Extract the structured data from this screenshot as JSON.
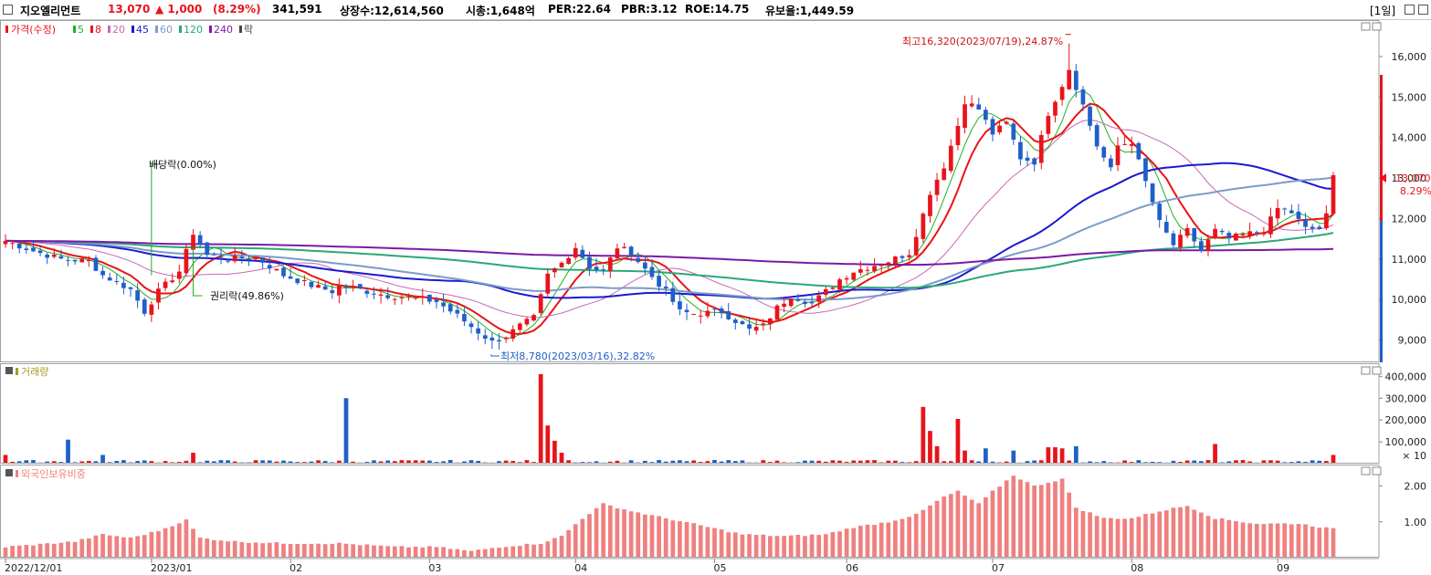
{
  "header": {
    "name": "지오엘리먼트",
    "price": "13,070",
    "change": "▲ 1,000",
    "change_pct": "(8.29%)",
    "volume": "341,591",
    "shares": "상장수:12,614,560",
    "mcap": "시총:1,648억",
    "per": "PER:22.64",
    "pbr": "PBR:3.12",
    "roe": "ROE:14.75",
    "retention": "유보율:1,449.59",
    "period": "[1일]"
  },
  "colors": {
    "up": "#e8141b",
    "down": "#1f5fc8",
    "ma5": "#22b022",
    "ma8": "#e81414",
    "ma20": "#c868b8",
    "ma45": "#1a1ad0",
    "ma60": "#7a9cc8",
    "ma120": "#2aa878",
    "ma240": "#7a1aa8",
    "foreign": "#f08080"
  },
  "price_legend": {
    "label": "가격(수정)",
    "items": [
      {
        "text": "5",
        "color": "#22b022"
      },
      {
        "text": "8",
        "color": "#e81414"
      },
      {
        "text": "20",
        "color": "#c868b8"
      },
      {
        "text": "45",
        "color": "#1a1ad0"
      },
      {
        "text": "60",
        "color": "#7a9cc8"
      },
      {
        "text": "120",
        "color": "#2aa878"
      },
      {
        "text": "240",
        "color": "#7a1aa8"
      },
      {
        "text": "락",
        "color": "#444444"
      }
    ]
  },
  "volume_legend": "거래량",
  "foreign_legend": "외국인보유비중",
  "annotations": {
    "high": "최고16,320(2023/07/19),24.87%",
    "low": "최저8,780(2023/03/16),32.82%",
    "dividend": "배당락(0.00%)",
    "rights": "권리락(49.86%)"
  },
  "current_label": {
    "price": "13,070",
    "pct": "8.29%"
  },
  "chart_data": [
    {
      "type": "candlestick",
      "xlabels": [
        "2022/12/01",
        "2023/01",
        "02",
        "03",
        "04",
        "05",
        "06",
        "07",
        "08",
        "09"
      ],
      "x_label_index": [
        0,
        21,
        41,
        61,
        82,
        102,
        121,
        142,
        162,
        183
      ],
      "y_ticks": [
        9000,
        10000,
        11000,
        12000,
        13000,
        14000,
        15000,
        16000
      ],
      "y_tick_labels": [
        "9,000",
        "10,000",
        "11,000",
        "12,000",
        "13,000",
        "14,000",
        "15,000",
        "16,000"
      ],
      "ylim": [
        8450,
        16900
      ],
      "moving_averages": [
        5,
        8,
        20,
        45,
        60,
        120,
        240
      ],
      "anchors_close": [
        [
          0,
          11450
        ],
        [
          4,
          11200
        ],
        [
          8,
          11000
        ],
        [
          12,
          10950
        ],
        [
          14,
          10600
        ],
        [
          18,
          10250
        ],
        [
          20,
          9700
        ],
        [
          22,
          10200
        ],
        [
          25,
          10700
        ],
        [
          27,
          11650
        ],
        [
          29,
          11100
        ],
        [
          32,
          11000
        ],
        [
          36,
          11050
        ],
        [
          40,
          10600
        ],
        [
          44,
          10350
        ],
        [
          47,
          10200
        ],
        [
          48,
          10350
        ],
        [
          50,
          10300
        ],
        [
          52,
          10200
        ],
        [
          55,
          10100
        ],
        [
          58,
          10050
        ],
        [
          62,
          9950
        ],
        [
          65,
          9600
        ],
        [
          68,
          9200
        ],
        [
          70,
          8950
        ],
        [
          72,
          9100
        ],
        [
          74,
          9350
        ],
        [
          76,
          9550
        ],
        [
          78,
          10600
        ],
        [
          80,
          10900
        ],
        [
          82,
          11300
        ],
        [
          84,
          10800
        ],
        [
          86,
          10700
        ],
        [
          88,
          11300
        ],
        [
          90,
          11150
        ],
        [
          92,
          10750
        ],
        [
          95,
          10200
        ],
        [
          97,
          9700
        ],
        [
          99,
          9650
        ],
        [
          103,
          9700
        ],
        [
          107,
          9250
        ],
        [
          109,
          9350
        ],
        [
          111,
          9800
        ],
        [
          113,
          10100
        ],
        [
          116,
          9900
        ],
        [
          118,
          10200
        ],
        [
          120,
          10500
        ],
        [
          122,
          10700
        ],
        [
          125,
          10850
        ],
        [
          127,
          10950
        ],
        [
          130,
          11150
        ],
        [
          132,
          12100
        ],
        [
          133,
          12650
        ],
        [
          135,
          13300
        ],
        [
          137,
          14300
        ],
        [
          138,
          14900
        ],
        [
          140,
          14700
        ],
        [
          142,
          14100
        ],
        [
          144,
          14350
        ],
        [
          146,
          13500
        ],
        [
          148,
          13400
        ],
        [
          150,
          14600
        ],
        [
          152,
          15300
        ],
        [
          153,
          15700
        ],
        [
          155,
          14800
        ],
        [
          157,
          13800
        ],
        [
          159,
          13200
        ],
        [
          160,
          13800
        ],
        [
          162,
          13900
        ],
        [
          164,
          12900
        ],
        [
          166,
          11900
        ],
        [
          168,
          11350
        ],
        [
          170,
          11700
        ],
        [
          172,
          11200
        ],
        [
          174,
          11700
        ],
        [
          176,
          11500
        ],
        [
          178,
          11600
        ],
        [
          181,
          11700
        ],
        [
          183,
          12250
        ],
        [
          185,
          12150
        ],
        [
          187,
          11750
        ],
        [
          189,
          11750
        ],
        [
          190,
          12070
        ],
        [
          191,
          13070
        ]
      ],
      "high_point": {
        "x": 153,
        "value": 16320
      },
      "low_point": {
        "x": 70,
        "value": 8780
      },
      "last_close": 13070
    },
    {
      "type": "bar",
      "name": "거래량",
      "unit_note": "× 10",
      "y_ticks": [
        100000,
        200000,
        300000,
        400000
      ],
      "y_tick_labels": [
        "100,000",
        "200,000",
        "300,000",
        "400,000"
      ],
      "ylim": [
        0,
        460000
      ],
      "base_volume": 12000,
      "spikes": [
        {
          "x": 0,
          "value": 40000
        },
        {
          "x": 9,
          "value": 110000
        },
        {
          "x": 14,
          "value": 40000
        },
        {
          "x": 27,
          "value": 50000
        },
        {
          "x": 49,
          "value": 300000
        },
        {
          "x": 77,
          "value": 410000
        },
        {
          "x": 78,
          "value": 175000
        },
        {
          "x": 79,
          "value": 105000
        },
        {
          "x": 80,
          "value": 50000
        },
        {
          "x": 132,
          "value": 260000
        },
        {
          "x": 133,
          "value": 150000
        },
        {
          "x": 134,
          "value": 80000
        },
        {
          "x": 137,
          "value": 205000
        },
        {
          "x": 138,
          "value": 60000
        },
        {
          "x": 141,
          "value": 70000
        },
        {
          "x": 145,
          "value": 60000
        },
        {
          "x": 150,
          "value": 75000
        },
        {
          "x": 151,
          "value": 75000
        },
        {
          "x": 152,
          "value": 70000
        },
        {
          "x": 154,
          "value": 80000
        },
        {
          "x": 174,
          "value": 90000
        },
        {
          "x": 191,
          "value": 40000
        }
      ]
    },
    {
      "type": "bar",
      "name": "외국인보유비중",
      "y_ticks": [
        1.0,
        2.0
      ],
      "y_tick_labels": [
        "1.00",
        "2.00"
      ],
      "ylim": [
        0,
        2.6
      ],
      "anchors": [
        [
          0,
          0.3
        ],
        [
          10,
          0.45
        ],
        [
          14,
          0.65
        ],
        [
          18,
          0.55
        ],
        [
          22,
          0.75
        ],
        [
          26,
          1.05
        ],
        [
          28,
          0.55
        ],
        [
          33,
          0.45
        ],
        [
          40,
          0.4
        ],
        [
          48,
          0.4
        ],
        [
          56,
          0.3
        ],
        [
          62,
          0.3
        ],
        [
          67,
          0.18
        ],
        [
          71,
          0.3
        ],
        [
          77,
          0.4
        ],
        [
          80,
          0.6
        ],
        [
          83,
          1.1
        ],
        [
          86,
          1.5
        ],
        [
          90,
          1.3
        ],
        [
          95,
          1.1
        ],
        [
          100,
          0.9
        ],
        [
          106,
          0.65
        ],
        [
          112,
          0.6
        ],
        [
          118,
          0.65
        ],
        [
          122,
          0.85
        ],
        [
          127,
          1.0
        ],
        [
          131,
          1.2
        ],
        [
          135,
          1.7
        ],
        [
          137,
          1.85
        ],
        [
          140,
          1.5
        ],
        [
          142,
          1.85
        ],
        [
          145,
          2.3
        ],
        [
          148,
          2.0
        ],
        [
          152,
          2.2
        ],
        [
          154,
          1.4
        ],
        [
          158,
          1.1
        ],
        [
          162,
          1.1
        ],
        [
          166,
          1.3
        ],
        [
          170,
          1.45
        ],
        [
          174,
          1.1
        ],
        [
          180,
          0.95
        ],
        [
          186,
          0.95
        ],
        [
          191,
          0.8
        ]
      ]
    }
  ]
}
